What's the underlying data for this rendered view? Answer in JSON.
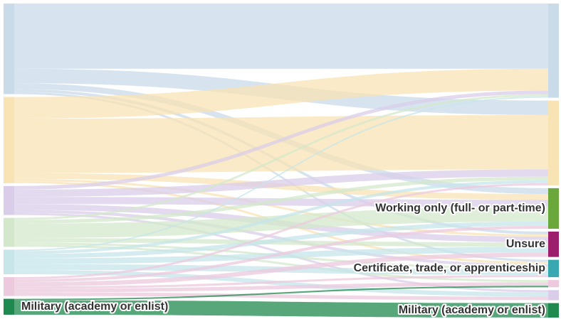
{
  "chart_data": {
    "type": "sankey",
    "left_nodes": [
      {
        "label": null,
        "color": "#c9dbe9"
      },
      {
        "label": null,
        "color": "#f8e3b4"
      },
      {
        "label": null,
        "color": "#d9cdea"
      },
      {
        "label": null,
        "color": "#d3e8cb"
      },
      {
        "label": null,
        "color": "#c6e6ea"
      },
      {
        "label": null,
        "color": "#ecc9dd"
      },
      {
        "label": "Military (academy or enlist)",
        "color": "#1f8a4f"
      }
    ],
    "right_nodes": [
      {
        "label": null,
        "color": "#c9dbe9"
      },
      {
        "label": null,
        "color": "#f8e3b4"
      },
      {
        "label": "Working only (full- or part-time)",
        "color": "#6aa83c"
      },
      {
        "label": "Unsure",
        "color": "#9c1f6e"
      },
      {
        "label": "Certificate, trade, or apprenticeship",
        "color": "#3aa8b0"
      },
      {
        "label": null,
        "color": "#ecc9dd"
      },
      {
        "label": null,
        "color": "#d9cdea"
      },
      {
        "label": "Military (academy or enlist)",
        "color": "#1f8a4f"
      }
    ],
    "links": [
      {
        "source": 0,
        "target": 0,
        "value": 90
      },
      {
        "source": 0,
        "target": 1,
        "value": 20
      },
      {
        "source": 0,
        "target": 2,
        "value": 8
      },
      {
        "source": 0,
        "target": 3,
        "value": 4
      },
      {
        "source": 0,
        "target": 4,
        "value": 3
      },
      {
        "source": 1,
        "target": 0,
        "value": 30
      },
      {
        "source": 1,
        "target": 1,
        "value": 75
      },
      {
        "source": 1,
        "target": 2,
        "value": 8
      },
      {
        "source": 1,
        "target": 3,
        "value": 3
      },
      {
        "source": 1,
        "target": 4,
        "value": 3
      },
      {
        "source": 2,
        "target": 0,
        "value": 5
      },
      {
        "source": 2,
        "target": 1,
        "value": 10
      },
      {
        "source": 2,
        "target": 2,
        "value": 10
      },
      {
        "source": 2,
        "target": 3,
        "value": 8
      },
      {
        "source": 2,
        "target": 4,
        "value": 4
      },
      {
        "source": 2,
        "target": 6,
        "value": 3
      },
      {
        "source": 3,
        "target": 0,
        "value": 3
      },
      {
        "source": 3,
        "target": 1,
        "value": 5
      },
      {
        "source": 3,
        "target": 2,
        "value": 20
      },
      {
        "source": 3,
        "target": 3,
        "value": 6
      },
      {
        "source": 3,
        "target": 4,
        "value": 3
      },
      {
        "source": 3,
        "target": 5,
        "value": 3
      },
      {
        "source": 4,
        "target": 0,
        "value": 2
      },
      {
        "source": 4,
        "target": 1,
        "value": 4
      },
      {
        "source": 4,
        "target": 2,
        "value": 6
      },
      {
        "source": 4,
        "target": 3,
        "value": 8
      },
      {
        "source": 4,
        "target": 4,
        "value": 8
      },
      {
        "source": 4,
        "target": 6,
        "value": 6
      },
      {
        "source": 5,
        "target": 1,
        "value": 3
      },
      {
        "source": 5,
        "target": 2,
        "value": 4
      },
      {
        "source": 5,
        "target": 3,
        "value": 6
      },
      {
        "source": 5,
        "target": 4,
        "value": 3
      },
      {
        "source": 5,
        "target": 5,
        "value": 5
      },
      {
        "source": 5,
        "target": 6,
        "value": 5
      },
      {
        "source": 6,
        "target": 5,
        "value": 2
      },
      {
        "source": 6,
        "target": 7,
        "value": 20
      }
    ]
  }
}
